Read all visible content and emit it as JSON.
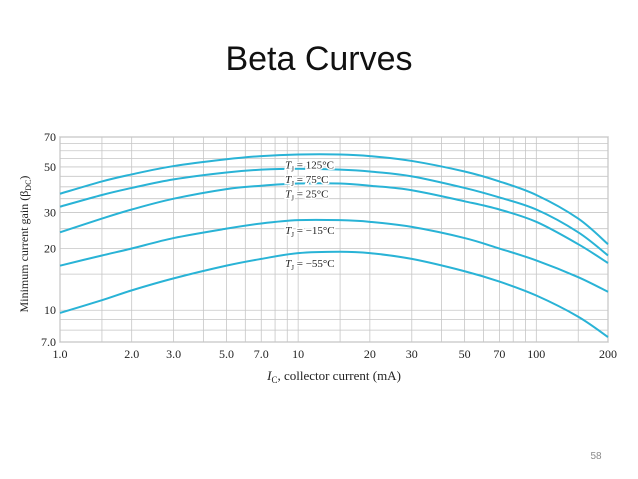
{
  "slide": {
    "title": "Beta Curves",
    "page_number": "58"
  },
  "chart_data": {
    "type": "line",
    "title": "",
    "xlabel_italic": "I",
    "xlabel_sub": "C",
    "xlabel_rest": ", collector current (mA)",
    "ylabel_main": "Minimum current gain (β",
    "ylabel_sub": "DC",
    "ylabel_close": ")",
    "x_scale": "log",
    "y_scale": "log",
    "xlim": [
      1.0,
      200
    ],
    "ylim": [
      7.0,
      70
    ],
    "grid": true,
    "x_ticks": [
      {
        "v": 1.0,
        "label": "1.0"
      },
      {
        "v": 2.0,
        "label": "2.0"
      },
      {
        "v": 3.0,
        "label": "3.0"
      },
      {
        "v": 5.0,
        "label": "5.0"
      },
      {
        "v": 7.0,
        "label": "7.0"
      },
      {
        "v": 10,
        "label": "10"
      },
      {
        "v": 20,
        "label": "20"
      },
      {
        "v": 30,
        "label": "30"
      },
      {
        "v": 50,
        "label": "50"
      },
      {
        "v": 70,
        "label": "70"
      },
      {
        "v": 100,
        "label": "100"
      },
      {
        "v": 200,
        "label": "200"
      }
    ],
    "y_ticks": [
      {
        "v": 7.0,
        "label": "7.0"
      },
      {
        "v": 10,
        "label": "10"
      },
      {
        "v": 20,
        "label": "20"
      },
      {
        "v": 30,
        "label": "30"
      },
      {
        "v": 50,
        "label": "50"
      },
      {
        "v": 70,
        "label": "70"
      }
    ],
    "x_grid": [
      1,
      1.5,
      2,
      3,
      4,
      5,
      6,
      7,
      8,
      9,
      10,
      15,
      20,
      30,
      40,
      50,
      60,
      70,
      80,
      90,
      100,
      150,
      200
    ],
    "y_grid": [
      7,
      8,
      9,
      10,
      15,
      20,
      25,
      30,
      35,
      40,
      45,
      50,
      55,
      60,
      65,
      70
    ],
    "line_color": "#29b3d6",
    "series": [
      {
        "name": "T_J = 125°C",
        "label_prefix": "T",
        "label_sub": "J",
        "label_suffix": " = 125°C",
        "x": [
          1,
          1.5,
          2,
          3,
          5,
          7,
          10,
          15,
          20,
          30,
          50,
          70,
          100,
          150,
          200
        ],
        "y": [
          37,
          42.5,
          46,
          50.5,
          54.5,
          56.5,
          57.5,
          57.5,
          56.5,
          53.5,
          47.5,
          42.5,
          36.5,
          28,
          21
        ]
      },
      {
        "name": "T_J = 75°C",
        "label_prefix": "T",
        "label_sub": "J",
        "label_suffix": " = 75°C",
        "x": [
          1,
          1.5,
          2,
          3,
          5,
          7,
          10,
          15,
          20,
          30,
          50,
          70,
          100,
          150,
          200
        ],
        "y": [
          32,
          36.5,
          39.5,
          43.5,
          47,
          48.5,
          49,
          48.5,
          47.5,
          45,
          39.5,
          35.5,
          31,
          24,
          18.5
        ]
      },
      {
        "name": "T_J = 25°C",
        "label_prefix": "T",
        "label_sub": "J",
        "label_suffix": " = 25°C",
        "x": [
          1,
          1.5,
          2,
          3,
          5,
          7,
          10,
          15,
          20,
          30,
          50,
          70,
          100,
          150,
          200
        ],
        "y": [
          24,
          28,
          31,
          35,
          39,
          40.5,
          41.5,
          41.5,
          40.5,
          38.5,
          34,
          31,
          27,
          21,
          17
        ]
      },
      {
        "name": "T_J = −15°C",
        "label_prefix": "T",
        "label_sub": "J",
        "label_suffix": " = −15°C",
        "x": [
          1,
          1.5,
          2,
          3,
          5,
          7,
          10,
          15,
          20,
          30,
          50,
          70,
          100,
          150,
          200
        ],
        "y": [
          16.5,
          18.5,
          20,
          22.5,
          25,
          26.5,
          27.5,
          27.5,
          27,
          25.5,
          22.5,
          20,
          17.5,
          14.5,
          12.3
        ]
      },
      {
        "name": "T_J = −55°C",
        "label_prefix": "T",
        "label_sub": "J",
        "label_suffix": " = −55°C",
        "x": [
          1,
          1.5,
          2,
          3,
          5,
          7,
          10,
          15,
          20,
          30,
          50,
          70,
          100,
          150,
          200
        ],
        "y": [
          9.7,
          11.2,
          12.5,
          14.3,
          16.5,
          17.8,
          19,
          19.3,
          19,
          17.8,
          15.5,
          13.8,
          11.8,
          9.3,
          7.4
        ]
      }
    ]
  }
}
